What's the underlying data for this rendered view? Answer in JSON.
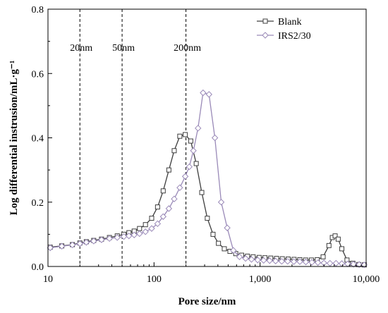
{
  "chart_data": {
    "type": "line",
    "title": "",
    "xlabel": "Pore size/nm",
    "ylabel": "Log differential instrusion/mL·g⁻¹",
    "xscale": "log",
    "xlim": [
      10,
      10000
    ],
    "ylim": [
      0,
      0.8
    ],
    "xticks": [
      10,
      100,
      1000,
      10000
    ],
    "xtick_labels": [
      "10",
      "100",
      "1,000",
      "10,000"
    ],
    "yticks": [
      0,
      0.2,
      0.4,
      0.6,
      0.8
    ],
    "ytick_labels": [
      "0.0",
      "0.2",
      "0.4",
      "0.6",
      "0.8"
    ],
    "legend_position": "top-right",
    "reference_lines": [
      {
        "x": 20,
        "label": "20nm"
      },
      {
        "x": 50,
        "label": "50nm"
      },
      {
        "x": 200,
        "label": "200nm"
      }
    ],
    "series": [
      {
        "name": "Blank",
        "color": "#3d3d3d",
        "marker": "square",
        "x": [
          10.5,
          13.5,
          17,
          20,
          23,
          27,
          32,
          38,
          45,
          52,
          58,
          65,
          73,
          83,
          95,
          108,
          122,
          138,
          155,
          175,
          197,
          222,
          250,
          282,
          318,
          360,
          405,
          460,
          520,
          590,
          670,
          760,
          860,
          980,
          1110,
          1260,
          1430,
          1620,
          1840,
          2090,
          2370,
          2690,
          3050,
          3460,
          3930,
          4460,
          4800,
          5100,
          5450,
          5900,
          6600,
          7500,
          8500,
          9600
        ],
        "y": [
          0.06,
          0.064,
          0.068,
          0.073,
          0.077,
          0.081,
          0.085,
          0.09,
          0.095,
          0.1,
          0.105,
          0.11,
          0.118,
          0.13,
          0.15,
          0.185,
          0.235,
          0.3,
          0.36,
          0.405,
          0.41,
          0.39,
          0.32,
          0.23,
          0.15,
          0.1,
          0.072,
          0.055,
          0.047,
          0.04,
          0.035,
          0.032,
          0.03,
          0.028,
          0.027,
          0.026,
          0.025,
          0.024,
          0.023,
          0.022,
          0.021,
          0.02,
          0.02,
          0.021,
          0.03,
          0.065,
          0.09,
          0.095,
          0.085,
          0.055,
          0.02,
          0.01,
          0.006,
          0.005
        ]
      },
      {
        "name": "IRS2/30",
        "color": "#9a8ab8",
        "marker": "diamond",
        "x": [
          10.5,
          13.5,
          17,
          20,
          23,
          27,
          32,
          38,
          45,
          52,
          58,
          65,
          73,
          83,
          95,
          108,
          122,
          138,
          155,
          175,
          197,
          215,
          235,
          260,
          290,
          330,
          375,
          430,
          490,
          560,
          640,
          730,
          830,
          950,
          1080,
          1230,
          1400,
          1600,
          1820,
          2080,
          2370,
          2700,
          3080,
          3510,
          4000,
          4560,
          5200,
          5900,
          6700,
          7600,
          8600,
          9600
        ],
        "y": [
          0.058,
          0.063,
          0.067,
          0.071,
          0.075,
          0.079,
          0.083,
          0.087,
          0.09,
          0.093,
          0.095,
          0.098,
          0.102,
          0.108,
          0.118,
          0.133,
          0.155,
          0.18,
          0.21,
          0.245,
          0.28,
          0.31,
          0.36,
          0.43,
          0.54,
          0.535,
          0.4,
          0.2,
          0.12,
          0.05,
          0.03,
          0.025,
          0.022,
          0.02,
          0.019,
          0.018,
          0.017,
          0.016,
          0.016,
          0.015,
          0.015,
          0.014,
          0.013,
          0.012,
          0.011,
          0.01,
          0.01,
          0.009,
          0.008,
          0.007,
          0.006,
          0.005
        ]
      }
    ]
  }
}
